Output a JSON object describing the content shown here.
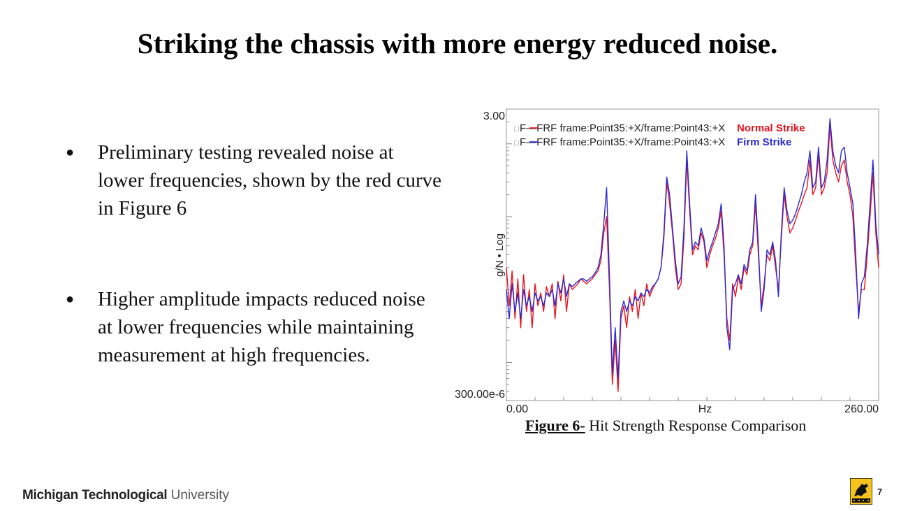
{
  "slide": {
    "title": "Striking the chassis with more energy reduced noise.",
    "bullets": [
      {
        "marker": "●",
        "text": "Preliminary testing revealed noise at lower frequencies, shown by the red curve in Figure 6"
      },
      {
        "marker": "●",
        "text": "Higher amplitude impacts reduced noise at lower frequencies while maintaining measurement at high frequencies."
      }
    ],
    "caption": {
      "label": "Figure 6-",
      "text": " Hit Strength Response Comparison"
    },
    "footer": {
      "brand_bold": "Michigan Technological",
      "brand_light": " University",
      "page_number": "7"
    }
  },
  "colors": {
    "red": "#e8141e",
    "blue": "#2a2ad6",
    "text": "#111111"
  },
  "chart_data": {
    "type": "line",
    "xlabel": "Hz",
    "ylabel": "g/N • Log",
    "y_scale": "log",
    "xlim": [
      0,
      260
    ],
    "ylim": [
      0.0003,
      3
    ],
    "x_tick_labels": [
      "0.00",
      "Hz",
      "260.00"
    ],
    "y_tick_labels": [
      "3.00",
      "300.00e-6"
    ],
    "series": [
      {
        "name": "F—FRF frame:Point35:+X/frame:Point43:+X",
        "legend_label": "Normal Strike",
        "legend_marker": "□",
        "color": "#e8141e",
        "x": [
          0,
          2,
          4,
          6,
          8,
          10,
          12,
          14,
          16,
          18,
          20,
          22,
          24,
          26,
          28,
          30,
          32,
          34,
          36,
          38,
          40,
          42,
          44,
          46,
          48,
          50,
          52,
          54,
          56,
          58,
          60,
          62,
          64,
          66,
          68,
          70,
          72,
          74,
          76,
          78,
          80,
          82,
          84,
          86,
          88,
          90,
          92,
          94,
          96,
          98,
          100,
          102,
          104,
          106,
          108,
          110,
          112,
          114,
          116,
          118,
          120,
          122,
          124,
          126,
          128,
          130,
          132,
          134,
          136,
          138,
          140,
          142,
          144,
          146,
          148,
          150,
          152,
          154,
          156,
          158,
          160,
          162,
          164,
          166,
          168,
          170,
          172,
          174,
          176,
          178,
          180,
          182,
          184,
          186,
          188,
          190,
          192,
          194,
          196,
          198,
          200,
          202,
          204,
          206,
          208,
          210,
          212,
          214,
          216,
          218,
          220,
          222,
          224,
          226,
          228,
          230,
          232,
          234,
          236,
          238,
          240,
          242,
          244,
          246,
          248,
          250,
          252,
          254,
          256,
          258,
          260
        ],
        "y": [
          0.02,
          0.006,
          0.018,
          0.004,
          0.014,
          0.003,
          0.016,
          0.005,
          0.01,
          0.003,
          0.012,
          0.006,
          0.009,
          0.005,
          0.011,
          0.008,
          0.012,
          0.004,
          0.013,
          0.007,
          0.016,
          0.005,
          0.012,
          0.01,
          0.011,
          0.012,
          0.014,
          0.013,
          0.012,
          0.013,
          0.014,
          0.016,
          0.018,
          0.025,
          0.06,
          0.1,
          0.01,
          0.0005,
          0.002,
          0.0004,
          0.004,
          0.006,
          0.003,
          0.008,
          0.005,
          0.01,
          0.004,
          0.009,
          0.006,
          0.012,
          0.008,
          0.01,
          0.012,
          0.014,
          0.02,
          0.05,
          0.3,
          0.15,
          0.06,
          0.02,
          0.01,
          0.012,
          0.05,
          0.6,
          0.12,
          0.03,
          0.04,
          0.035,
          0.06,
          0.045,
          0.02,
          0.03,
          0.04,
          0.05,
          0.07,
          0.12,
          0.03,
          0.004,
          0.002,
          0.012,
          0.008,
          0.015,
          0.01,
          0.02,
          0.016,
          0.03,
          0.04,
          0.15,
          0.03,
          0.006,
          0.012,
          0.03,
          0.025,
          0.04,
          0.02,
          0.01,
          0.05,
          0.2,
          0.1,
          0.06,
          0.07,
          0.09,
          0.12,
          0.15,
          0.2,
          0.25,
          0.6,
          0.2,
          0.25,
          0.7,
          0.2,
          0.25,
          0.4,
          1.8,
          0.6,
          0.4,
          0.3,
          0.5,
          0.6,
          0.3,
          0.2,
          0.1,
          0.02,
          0.005,
          0.01,
          0.01,
          0.03,
          0.1,
          0.4,
          0.06,
          0.02
        ]
      },
      {
        "name": "F—FRF frame:Point35:+X/frame:Point43:+X",
        "legend_label": "Firm Strike",
        "legend_marker": "□",
        "color": "#2a2ad6",
        "x": [
          0,
          2,
          4,
          6,
          8,
          10,
          12,
          14,
          16,
          18,
          20,
          22,
          24,
          26,
          28,
          30,
          32,
          34,
          36,
          38,
          40,
          42,
          44,
          46,
          48,
          50,
          52,
          54,
          56,
          58,
          60,
          62,
          64,
          66,
          68,
          70,
          72,
          74,
          76,
          78,
          80,
          82,
          84,
          86,
          88,
          90,
          92,
          94,
          96,
          98,
          100,
          102,
          104,
          106,
          108,
          110,
          112,
          114,
          116,
          118,
          120,
          122,
          124,
          126,
          128,
          130,
          132,
          134,
          136,
          138,
          140,
          142,
          144,
          146,
          148,
          150,
          152,
          154,
          156,
          158,
          160,
          162,
          164,
          166,
          168,
          170,
          172,
          174,
          176,
          178,
          180,
          182,
          184,
          186,
          188,
          190,
          192,
          194,
          196,
          198,
          200,
          202,
          204,
          206,
          208,
          210,
          212,
          214,
          216,
          218,
          220,
          222,
          224,
          226,
          228,
          230,
          232,
          234,
          236,
          238,
          240,
          242,
          244,
          246,
          248,
          250,
          252,
          254,
          256,
          258,
          260
        ],
        "y": [
          0.01,
          0.004,
          0.012,
          0.005,
          0.009,
          0.004,
          0.01,
          0.006,
          0.008,
          0.005,
          0.009,
          0.007,
          0.008,
          0.006,
          0.009,
          0.008,
          0.01,
          0.006,
          0.012,
          0.009,
          0.014,
          0.008,
          0.012,
          0.011,
          0.012,
          0.013,
          0.014,
          0.014,
          0.013,
          0.014,
          0.015,
          0.017,
          0.02,
          0.03,
          0.08,
          0.25,
          0.015,
          0.0007,
          0.003,
          0.0006,
          0.005,
          0.007,
          0.005,
          0.007,
          0.006,
          0.008,
          0.007,
          0.009,
          0.008,
          0.01,
          0.009,
          0.011,
          0.012,
          0.014,
          0.02,
          0.06,
          0.35,
          0.2,
          0.07,
          0.025,
          0.012,
          0.015,
          0.07,
          0.8,
          0.15,
          0.035,
          0.045,
          0.04,
          0.07,
          0.05,
          0.025,
          0.035,
          0.045,
          0.06,
          0.08,
          0.15,
          0.04,
          0.003,
          0.0015,
          0.01,
          0.012,
          0.016,
          0.012,
          0.022,
          0.018,
          0.035,
          0.045,
          0.2,
          0.04,
          0.005,
          0.01,
          0.035,
          0.03,
          0.045,
          0.025,
          0.008,
          0.06,
          0.25,
          0.12,
          0.08,
          0.09,
          0.11,
          0.15,
          0.2,
          0.3,
          0.4,
          0.8,
          0.25,
          0.3,
          0.9,
          0.25,
          0.3,
          0.6,
          2.2,
          0.8,
          0.5,
          0.4,
          0.8,
          0.9,
          0.4,
          0.25,
          0.15,
          0.03,
          0.004,
          0.012,
          0.015,
          0.04,
          0.15,
          0.6,
          0.08,
          0.03
        ]
      }
    ]
  }
}
